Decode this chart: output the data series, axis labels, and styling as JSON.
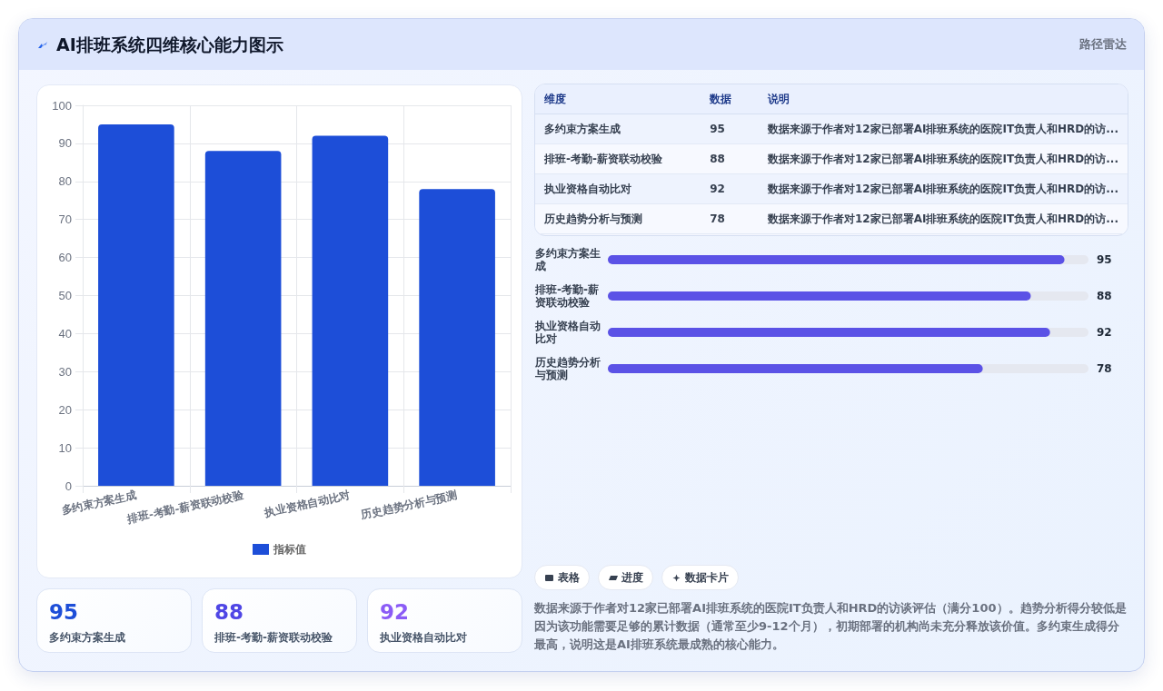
{
  "chart_data": [
    {
      "type": "other",
      "title": "AI排班系统四维核心能力图示",
      "annotations": [
        "路径雷达"
      ]
    },
    {
      "type": "bar",
      "categories": [
        "多约束方案生成",
        "排班-考勤-薪资联动校验",
        "执业资格自动比对",
        "历史趋势分析与预测"
      ],
      "series": [
        {
          "name": "指标值",
          "color": "#1d4ed8",
          "values": [
            95,
            88,
            92,
            78
          ]
        }
      ],
      "ylim": [
        0,
        100
      ],
      "yticks": [
        0,
        10,
        20,
        30,
        40,
        50,
        60,
        70,
        80,
        90,
        100
      ],
      "grid": true,
      "legend": "bottom"
    },
    {
      "type": "other",
      "categories": [
        "多约束方案生成",
        "排班-考勤-薪资联动校验",
        "执业资格自动比对",
        "历史趋势分析与预测"
      ],
      "values": [
        95,
        88,
        92,
        78
      ],
      "data_labels": true,
      "annotations": [
        "维度",
        "数据",
        "说明",
        "数据来源于作者对12家已部署AI排班系统的医院IT负责人和HRD的访...",
        "数据来源于作者对12家已部署AI排班系统的医院IT负责人和HRD的访...",
        "数据来源于作者对12家已部署AI排班系统的医院IT负责人和HRD的访...",
        "数据来源于作者对12家已部署AI排班系统的医院IT负责人和HRD的访..."
      ]
    },
    {
      "type": "bar",
      "orientation": "horizontal",
      "categories": [
        "多约束方案生成",
        "排班-考勤-薪资联动校验",
        "执业资格自动比对",
        "历史趋势分析与预测"
      ],
      "values": [
        95,
        88,
        92,
        78
      ],
      "color": "#5b52e6",
      "data_labels": true
    },
    {
      "type": "other",
      "categories": [
        "多约束方案生成",
        "排班-考勤-薪资联动校验",
        "执业资格自动比对"
      ],
      "values": [
        95,
        88,
        92
      ],
      "data_labels": true
    },
    {
      "type": "other",
      "annotations": [
        "表格",
        "进度",
        "数据卡片",
        "数据来源于作者对12家已部署AI排班系统的医院IT负责人和HRD的访谈评估（满分100）。趋势分析得分较低是因为该功能需要足够的累计数据（通常至少9-12个月），初期部署的机构尚未充分释放该价值。多约束生成得分最高，说明这是AI排班系统最成熟的核心能力。"
      ]
    }
  ]
}
